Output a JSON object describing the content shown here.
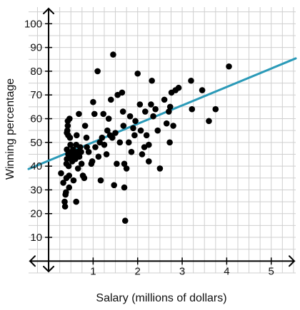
{
  "chart_data": {
    "type": "scatter",
    "xlabel": "Salary (millions of dollars)",
    "ylabel": "Winning percentage",
    "xlim": [
      -0.45,
      5.55
    ],
    "ylim": [
      -5,
      107
    ],
    "x_ticks": [
      1,
      2,
      3,
      4,
      5
    ],
    "y_ticks": [
      10,
      20,
      30,
      40,
      50,
      60,
      70,
      80,
      90,
      100
    ],
    "grid": true,
    "grid_x_step": 0.25,
    "grid_y_step": 5,
    "point_color": "#000000",
    "line_color": "#2b9ab8",
    "trend_line": {
      "x1": -0.45,
      "y1": 38.8,
      "x2": 5.55,
      "y2": 85.4
    },
    "points": [
      [
        0.28,
        37.0
      ],
      [
        0.33,
        33.0
      ],
      [
        0.36,
        25.0
      ],
      [
        0.37,
        23.0
      ],
      [
        0.38,
        28.0
      ],
      [
        0.39,
        29.0
      ],
      [
        0.4,
        35.0
      ],
      [
        0.4,
        41.0
      ],
      [
        0.41,
        43.0
      ],
      [
        0.41,
        47.0
      ],
      [
        0.41,
        54.0
      ],
      [
        0.42,
        55.0
      ],
      [
        0.43,
        57.0
      ],
      [
        0.43,
        59.0
      ],
      [
        0.44,
        53.0
      ],
      [
        0.44,
        45.0
      ],
      [
        0.45,
        40.0
      ],
      [
        0.46,
        36.0
      ],
      [
        0.46,
        31.0
      ],
      [
        0.47,
        60.0
      ],
      [
        0.48,
        52.0
      ],
      [
        0.49,
        49.0
      ],
      [
        0.5,
        44.0
      ],
      [
        0.52,
        46.0
      ],
      [
        0.53,
        42.0
      ],
      [
        0.55,
        47.0
      ],
      [
        0.56,
        34.0
      ],
      [
        0.58,
        45.0
      ],
      [
        0.6,
        43.0
      ],
      [
        0.62,
        49.0
      ],
      [
        0.62,
        25.0
      ],
      [
        0.63,
        53.0
      ],
      [
        0.65,
        46.0
      ],
      [
        0.66,
        39.0
      ],
      [
        0.68,
        62.0
      ],
      [
        0.69,
        44.0
      ],
      [
        0.71,
        48.0
      ],
      [
        0.73,
        46.0
      ],
      [
        0.74,
        41.0
      ],
      [
        0.77,
        36.0
      ],
      [
        0.8,
        35.0
      ],
      [
        0.82,
        57.0
      ],
      [
        0.85,
        52.0
      ],
      [
        0.86,
        48.0
      ],
      [
        0.9,
        46.0
      ],
      [
        0.96,
        41.0
      ],
      [
        0.98,
        42.0
      ],
      [
        1.0,
        67.0
      ],
      [
        1.03,
        62.0
      ],
      [
        1.05,
        48.0
      ],
      [
        1.1,
        80.0
      ],
      [
        1.12,
        44.0
      ],
      [
        1.15,
        50.0
      ],
      [
        1.17,
        34.0
      ],
      [
        1.2,
        52.0
      ],
      [
        1.23,
        62.0
      ],
      [
        1.25,
        49.0
      ],
      [
        1.3,
        45.0
      ],
      [
        1.32,
        55.0
      ],
      [
        1.35,
        60.0
      ],
      [
        1.38,
        53.0
      ],
      [
        1.4,
        68.0
      ],
      [
        1.43,
        52.0
      ],
      [
        1.45,
        87.0
      ],
      [
        1.47,
        32.0
      ],
      [
        1.5,
        54.0
      ],
      [
        1.53,
        41.0
      ],
      [
        1.55,
        70.0
      ],
      [
        1.6,
        50.0
      ],
      [
        1.65,
        71.0
      ],
      [
        1.67,
        63.0
      ],
      [
        1.68,
        57.0
      ],
      [
        1.7,
        41.0
      ],
      [
        1.7,
        31.0
      ],
      [
        1.72,
        17.0
      ],
      [
        1.75,
        39.0
      ],
      [
        1.8,
        50.0
      ],
      [
        1.83,
        61.0
      ],
      [
        1.86,
        46.0
      ],
      [
        1.9,
        56.0
      ],
      [
        1.93,
        53.0
      ],
      [
        1.95,
        59.0
      ],
      [
        2.0,
        79.0
      ],
      [
        2.05,
        66.0
      ],
      [
        2.07,
        55.0
      ],
      [
        2.1,
        45.0
      ],
      [
        2.15,
        48.0
      ],
      [
        2.17,
        63.0
      ],
      [
        2.2,
        53.0
      ],
      [
        2.25,
        42.0
      ],
      [
        2.25,
        49.0
      ],
      [
        2.3,
        66.0
      ],
      [
        2.32,
        76.0
      ],
      [
        2.35,
        61.0
      ],
      [
        2.4,
        64.0
      ],
      [
        2.45,
        55.0
      ],
      [
        2.5,
        39.0
      ],
      [
        2.6,
        68.0
      ],
      [
        2.65,
        58.0
      ],
      [
        2.7,
        63.0
      ],
      [
        2.72,
        50.0
      ],
      [
        2.73,
        65.0
      ],
      [
        2.76,
        71.0
      ],
      [
        2.8,
        57.0
      ],
      [
        2.85,
        72.0
      ],
      [
        2.92,
        73.0
      ],
      [
        3.2,
        76.0
      ],
      [
        3.22,
        64.0
      ],
      [
        3.45,
        72.0
      ],
      [
        3.6,
        59.0
      ],
      [
        3.75,
        64.0
      ],
      [
        4.05,
        82.0
      ]
    ]
  }
}
